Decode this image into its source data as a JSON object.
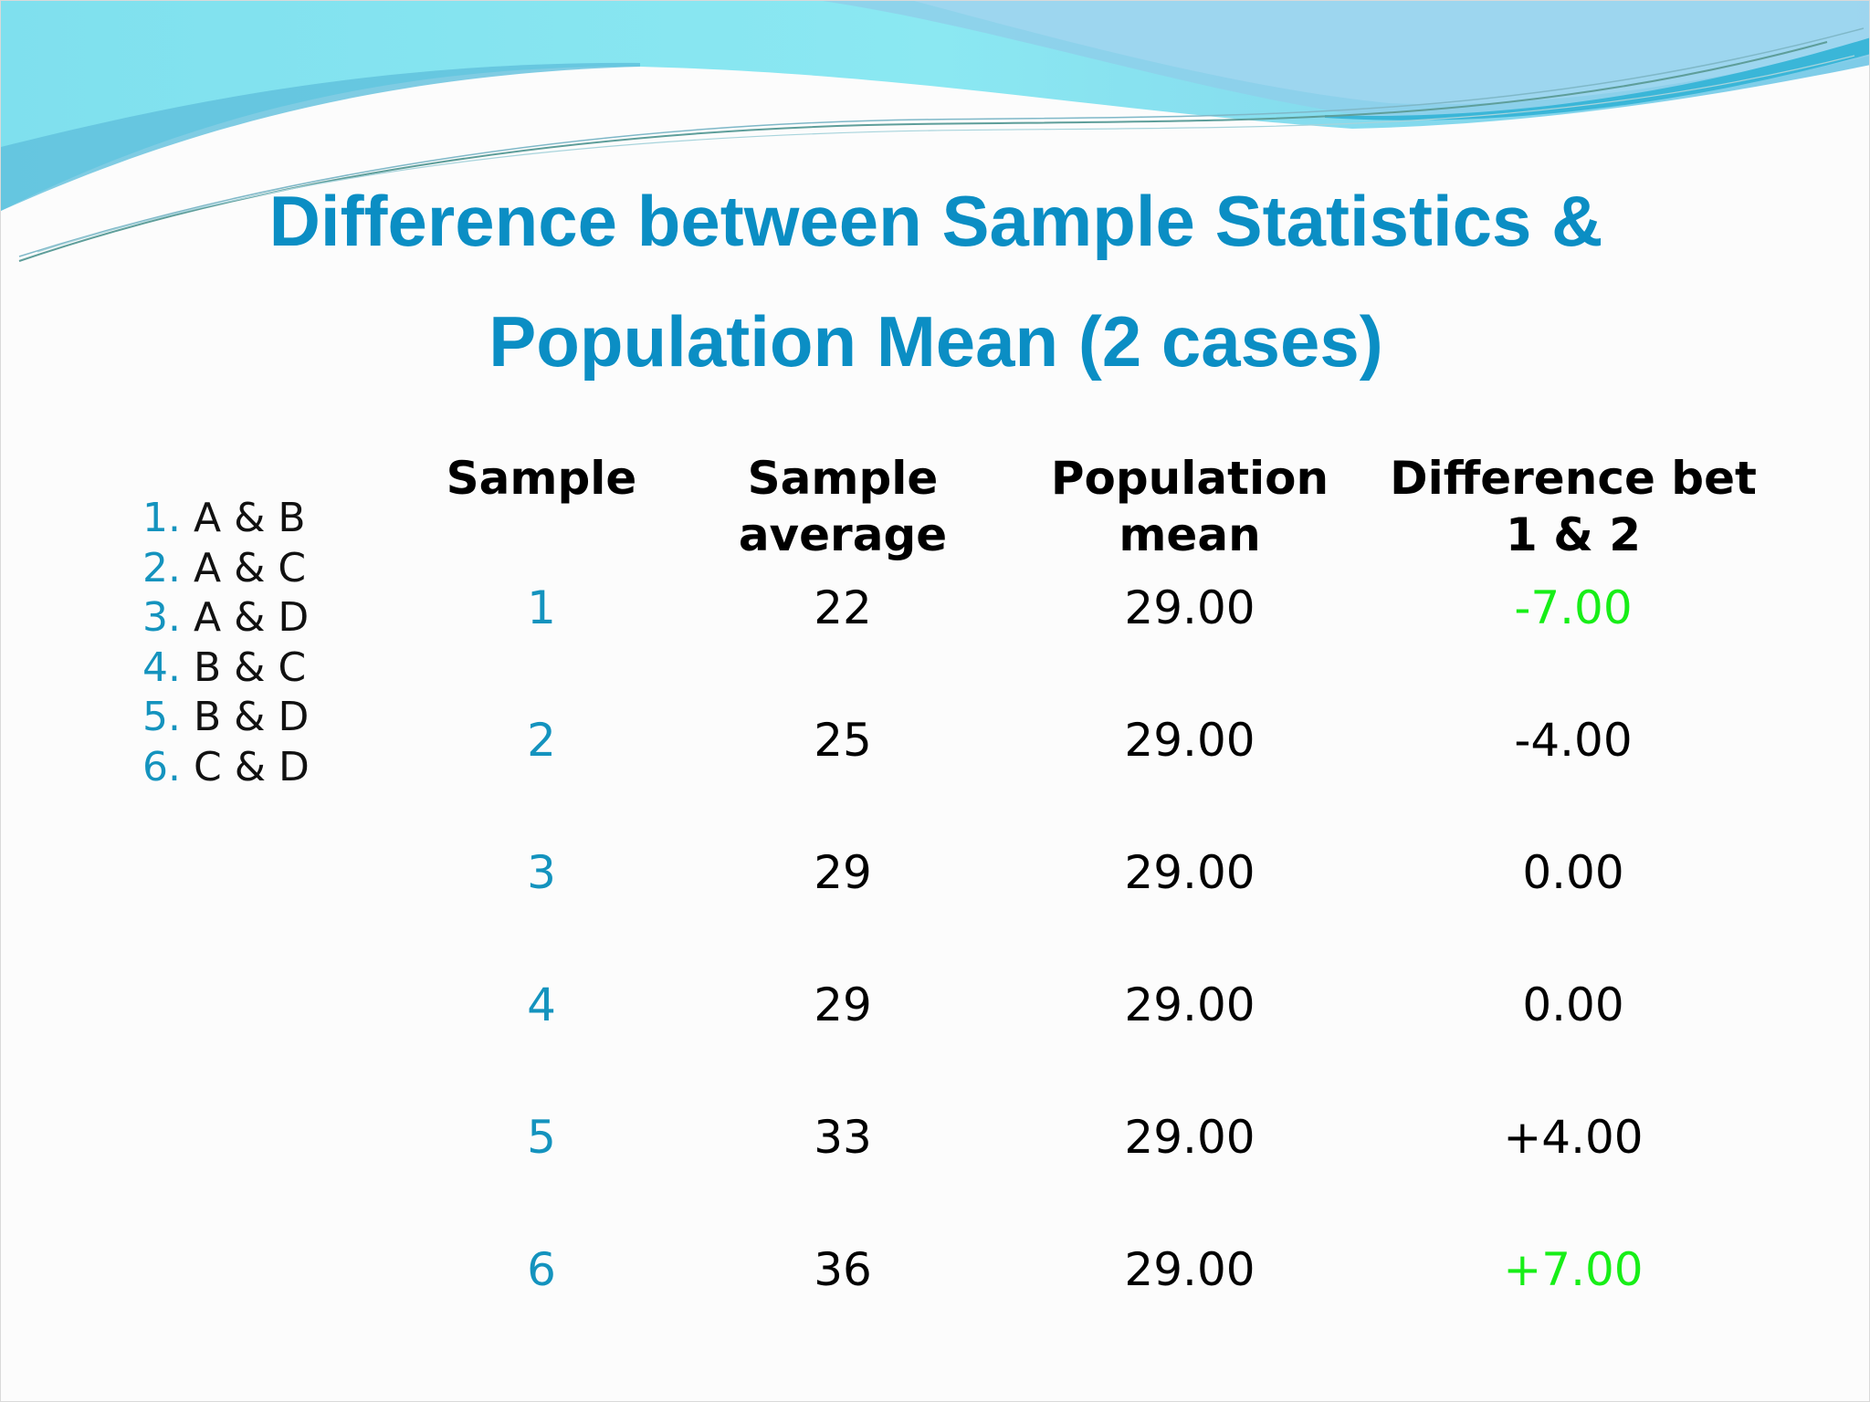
{
  "slide": {
    "title_line1": "Difference between Sample Statistics &",
    "title_line2": "Population Mean (2 cases)"
  },
  "pairs": [
    {
      "num": "1.",
      "label": "A & B"
    },
    {
      "num": "2.",
      "label": "A & C"
    },
    {
      "num": "3.",
      "label": "A & D"
    },
    {
      "num": "4.",
      "label": "B & C"
    },
    {
      "num": "5.",
      "label": "B & D"
    },
    {
      "num": "6.",
      "label": "C & D"
    }
  ],
  "table": {
    "headers": [
      {
        "line1": "Sample",
        "line2": ""
      },
      {
        "line1": "Sample",
        "line2": "average"
      },
      {
        "line1": "Population",
        "line2": "mean"
      },
      {
        "line1": "Difference bet",
        "line2": "1 & 2"
      }
    ],
    "rows": [
      {
        "sample": "1",
        "avg": "22",
        "pop": "29.00",
        "diff": "-7.00",
        "highlight": true
      },
      {
        "sample": "2",
        "avg": "25",
        "pop": "29.00",
        "diff": "-4.00",
        "highlight": false
      },
      {
        "sample": "3",
        "avg": "29",
        "pop": "29.00",
        "diff": "0.00",
        "highlight": false
      },
      {
        "sample": "4",
        "avg": "29",
        "pop": "29.00",
        "diff": "0.00",
        "highlight": false
      },
      {
        "sample": "5",
        "avg": "33",
        "pop": "29.00",
        "diff": "+4.00",
        "highlight": false
      },
      {
        "sample": "6",
        "avg": "36",
        "pop": "29.00",
        "diff": "+7.00",
        "highlight": true
      }
    ]
  },
  "colors": {
    "title": "#0b8ec4",
    "accent": "#1493be",
    "highlight": "#17ee17"
  }
}
